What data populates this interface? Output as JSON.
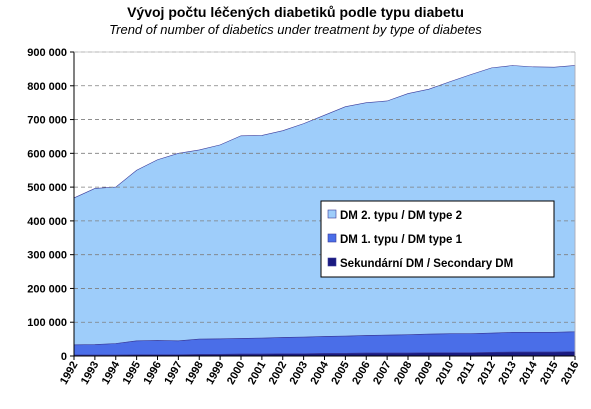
{
  "chart_data": {
    "type": "area",
    "stacked": true,
    "title": "Vývoj počtu léčených diabetiků podle typu diabetu",
    "subtitle": "Trend of number of diabetics under treatment by type of diabetes",
    "xlabel": "",
    "ylabel": "",
    "ylim": [
      0,
      900000
    ],
    "yticks": [
      0,
      100000,
      200000,
      300000,
      400000,
      500000,
      600000,
      700000,
      800000,
      900000
    ],
    "ytick_labels": [
      "0",
      "100 000",
      "200 000",
      "300 000",
      "400 000",
      "500 000",
      "600 000",
      "700 000",
      "800 000",
      "900 000"
    ],
    "grid": "horizontal dashed",
    "legend_position": "right-middle",
    "categories": [
      "1992",
      "1993",
      "1994",
      "1995",
      "1996",
      "1997",
      "1998",
      "1999",
      "2000",
      "2001",
      "2002",
      "2003",
      "2004",
      "2005",
      "2006",
      "2007",
      "2008",
      "2009",
      "2010",
      "2011",
      "2012",
      "2013",
      "2014",
      "2015",
      "2016"
    ],
    "series": [
      {
        "name": "Sekundární DM / Secondary DM",
        "color": "#1a1a80",
        "values": [
          3000,
          3000,
          3000,
          4000,
          4000,
          4000,
          5000,
          5000,
          6000,
          6000,
          7000,
          7000,
          8000,
          8000,
          9000,
          9000,
          9000,
          10000,
          10000,
          10000,
          11000,
          12000,
          12000,
          12000,
          13000
        ]
      },
      {
        "name": "DM 1. typu / DM type 1",
        "color": "#4a6ee8",
        "values": [
          30000,
          31000,
          34000,
          41000,
          42000,
          41000,
          45000,
          46000,
          46000,
          47000,
          48000,
          49000,
          50000,
          51000,
          52000,
          53000,
          54000,
          55000,
          56000,
          56000,
          57000,
          58000,
          58000,
          58000,
          59000
        ]
      },
      {
        "name": "DM 2. typu / DM type 2",
        "color": "#9ecdfa",
        "values": [
          435000,
          462000,
          463000,
          505000,
          535000,
          555000,
          560000,
          574000,
          600000,
          600000,
          612000,
          632000,
          655000,
          679000,
          689000,
          693000,
          714000,
          725000,
          746000,
          767000,
          785000,
          790000,
          786000,
          785000,
          788000
        ]
      }
    ]
  }
}
